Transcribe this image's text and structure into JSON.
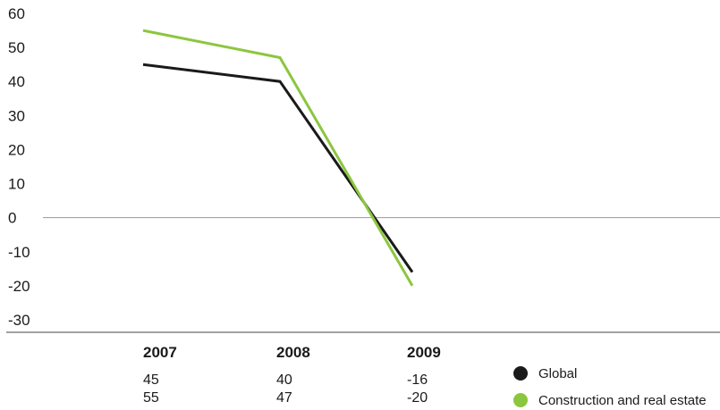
{
  "chart_data": {
    "type": "line",
    "categories": [
      "2007",
      "2008",
      "2009"
    ],
    "series": [
      {
        "name": "Global",
        "values": [
          45,
          40,
          -16
        ],
        "color": "#1a1a1a"
      },
      {
        "name": "Construction and real estate",
        "values": [
          55,
          47,
          -20
        ],
        "color": "#8cc63f"
      }
    ],
    "ylim": [
      -30,
      60
    ],
    "yticks": [
      60,
      50,
      40,
      30,
      20,
      10,
      0,
      -10,
      -20,
      -30
    ],
    "zero_line": true,
    "legend_position": "bottom-right",
    "axis_color": "#999999"
  }
}
